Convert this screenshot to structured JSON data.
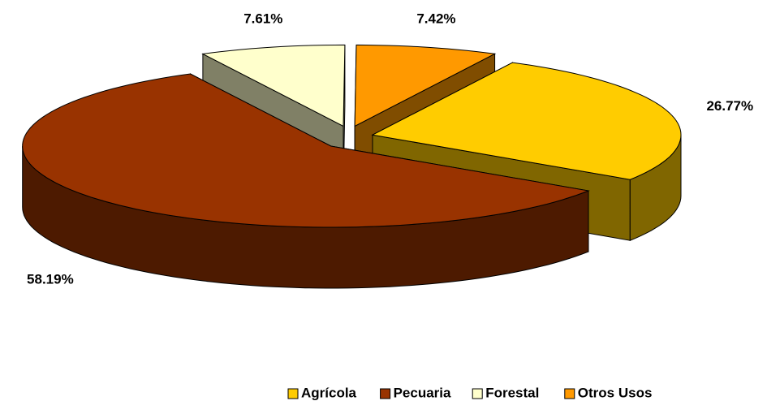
{
  "chart_data": {
    "type": "pie",
    "categories": [
      "Agrícola",
      "Pecuaria",
      "Forestal",
      "Otros Usos"
    ],
    "values": [
      26.77,
      58.19,
      7.61,
      7.42
    ],
    "value_labels": [
      "26.77%",
      "58.19%",
      "7.61%",
      "7.42%"
    ],
    "colors": [
      "#FFCC00",
      "#993300",
      "#FFFFCC",
      "#FF9900"
    ],
    "legend": "bottom"
  }
}
